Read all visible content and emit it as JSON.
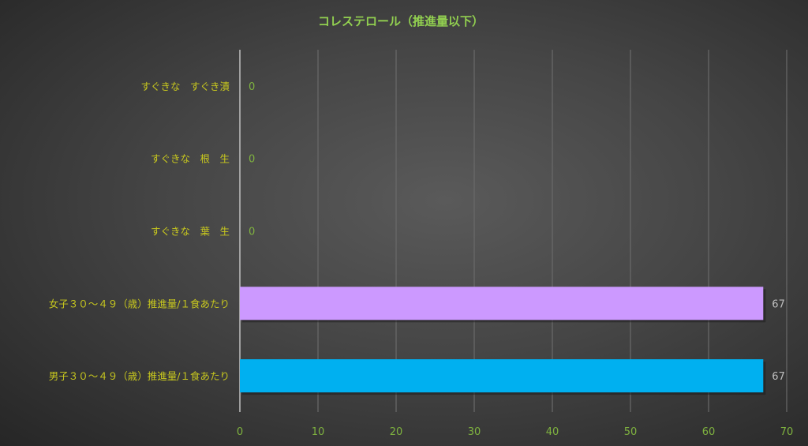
{
  "chart_data": {
    "type": "bar",
    "orientation": "horizontal",
    "title": "コレステロール（推進量以下）",
    "categories": [
      "すぐきな　すぐき漬",
      "すぐきな　根　生",
      "すぐきな　葉　生",
      "女子３０～４９（歳）推進量/１食あたり",
      "男子３０～４９（歳）推進量/１食あたり"
    ],
    "values": [
      0,
      0,
      0,
      67,
      67
    ],
    "bar_colors": [
      "#cc99ff",
      "#cc99ff",
      "#cc99ff",
      "#cc99ff",
      "#00b0f0"
    ],
    "xlim": [
      0,
      70
    ],
    "xticks": [
      "0",
      "10",
      "20",
      "30",
      "40",
      "50",
      "60",
      "70"
    ],
    "grid": true,
    "colors": {
      "title": "#92d050",
      "category_label": "#c8c81e",
      "tick_label": "#7fb33f",
      "data_label_zero": "#7fb33f",
      "data_label": "#bfbfbf"
    }
  }
}
